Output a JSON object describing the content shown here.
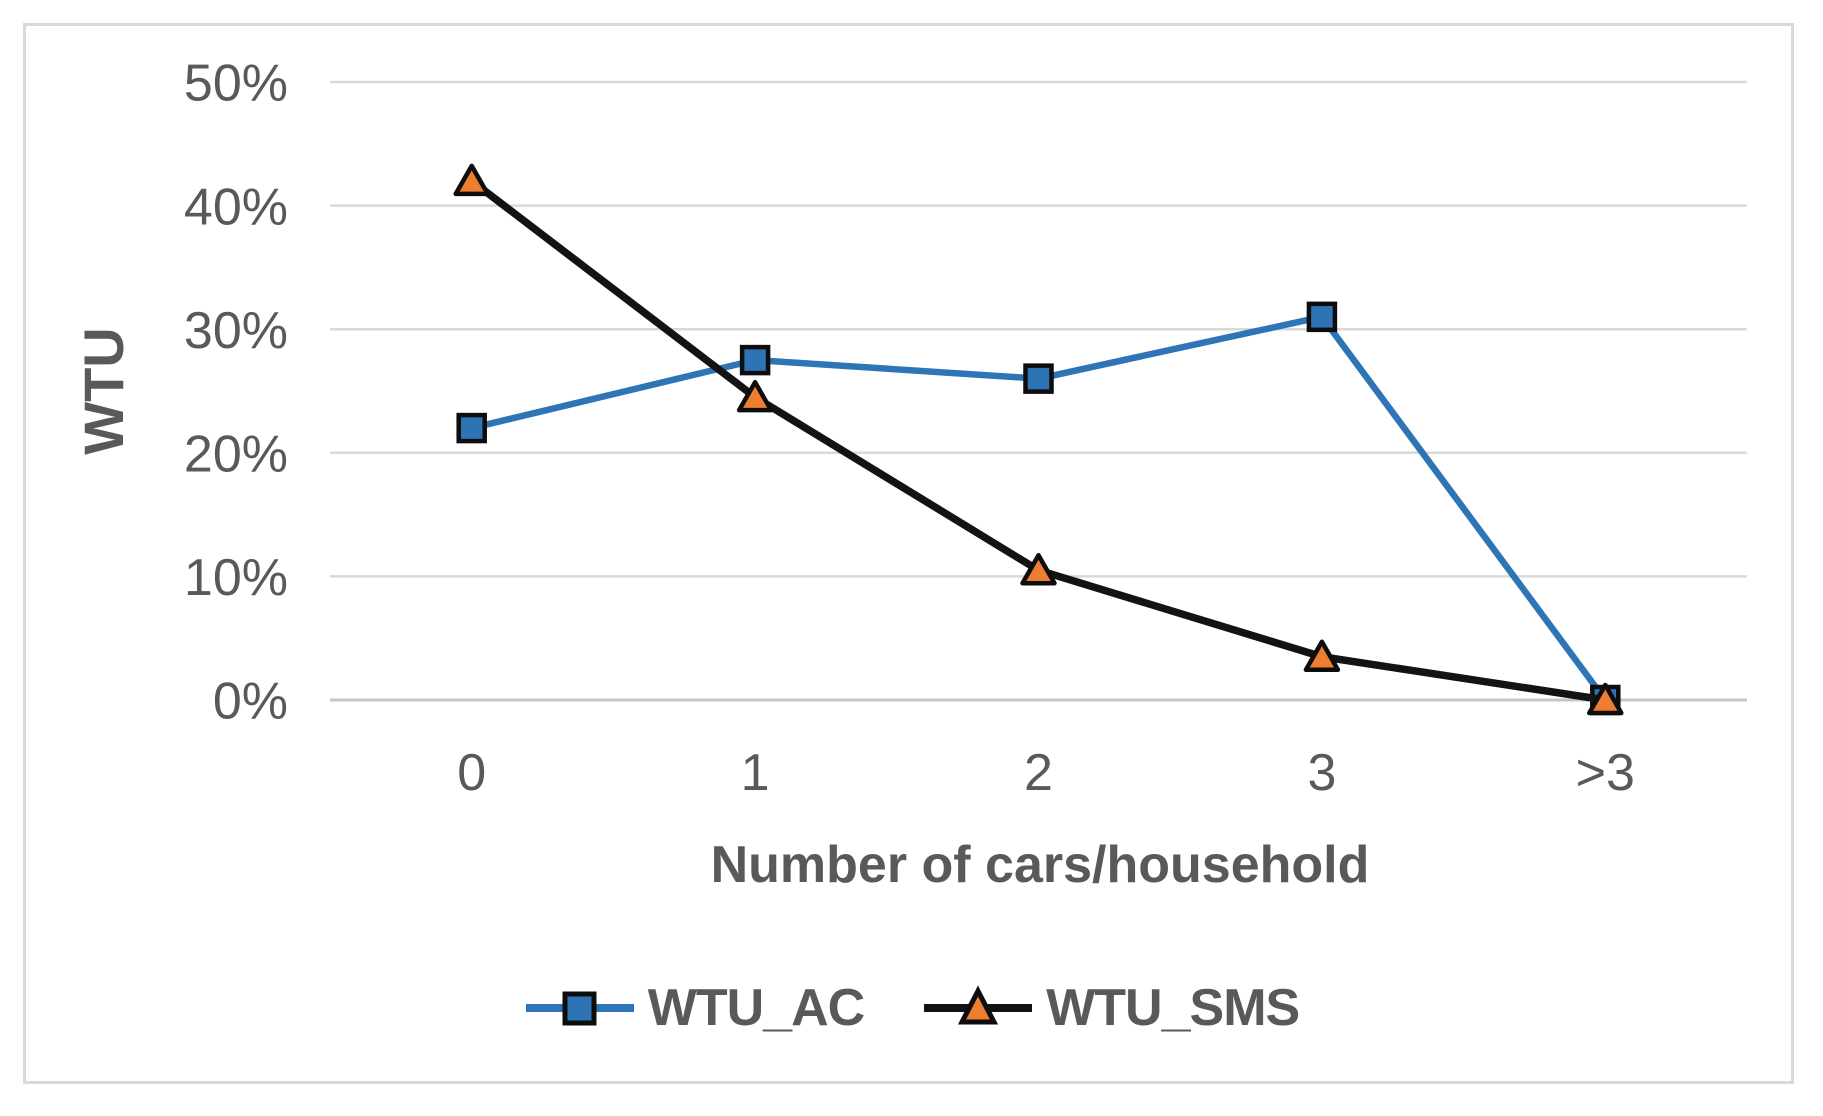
{
  "chart_data": {
    "type": "line",
    "title": "",
    "xlabel": "Number of cars/household",
    "ylabel": "WTU",
    "categories": [
      "0",
      "1",
      "2",
      "3",
      ">3"
    ],
    "y_ticks": [
      {
        "value": 0,
        "label": "0%"
      },
      {
        "value": 10,
        "label": "10%"
      },
      {
        "value": 20,
        "label": "20%"
      },
      {
        "value": 30,
        "label": "30%"
      },
      {
        "value": 40,
        "label": "40%"
      },
      {
        "value": 50,
        "label": "50%"
      }
    ],
    "ylim": [
      0,
      50
    ],
    "grid": "horizontal",
    "legend_position": "bottom",
    "series": [
      {
        "name": "WTU_AC",
        "marker": "square",
        "line_color": "#2E75B6",
        "marker_fill": "#2E74B5",
        "marker_stroke": "#0D0D0D",
        "values": [
          22,
          27.5,
          26,
          31,
          0
        ]
      },
      {
        "name": "WTU_SMS",
        "marker": "triangle",
        "line_color": "#131313",
        "marker_fill": "#ED7D31",
        "marker_stroke": "#0D0D0D",
        "values": [
          42,
          24.5,
          10.5,
          3.5,
          0
        ]
      }
    ],
    "colors": {
      "gridline": "#D9D9D9",
      "axis_line": "#C6C6C6",
      "text": "#595959",
      "frame_border": "#D9D9D9"
    }
  }
}
